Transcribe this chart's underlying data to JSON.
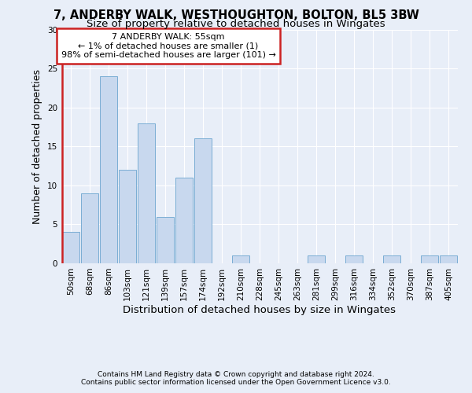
{
  "title": "7, ANDERBY WALK, WESTHOUGHTON, BOLTON, BL5 3BW",
  "subtitle": "Size of property relative to detached houses in Wingates",
  "xlabel_bottom": "Distribution of detached houses by size in Wingates",
  "ylabel": "Number of detached properties",
  "categories": [
    "50sqm",
    "68sqm",
    "86sqm",
    "103sqm",
    "121sqm",
    "139sqm",
    "157sqm",
    "174sqm",
    "192sqm",
    "210sqm",
    "228sqm",
    "245sqm",
    "263sqm",
    "281sqm",
    "299sqm",
    "316sqm",
    "334sqm",
    "352sqm",
    "370sqm",
    "387sqm",
    "405sqm"
  ],
  "values": [
    4,
    9,
    24,
    12,
    18,
    6,
    11,
    16,
    0,
    1,
    0,
    0,
    0,
    1,
    0,
    1,
    0,
    1,
    0,
    1,
    1
  ],
  "bar_color": "#c8d8ee",
  "bar_edge_color": "#7aadd4",
  "highlight_color": "#cc2222",
  "annotation_text": "7 ANDERBY WALK: 55sqm\n← 1% of detached houses are smaller (1)\n98% of semi-detached houses are larger (101) →",
  "annotation_box_color": "#ffffff",
  "annotation_box_edge": "#cc2222",
  "ylim": [
    0,
    30
  ],
  "yticks": [
    0,
    5,
    10,
    15,
    20,
    25,
    30
  ],
  "footnote1": "Contains HM Land Registry data © Crown copyright and database right 2024.",
  "footnote2": "Contains public sector information licensed under the Open Government Licence v3.0.",
  "background_color": "#e8eef8",
  "grid_color": "#ffffff",
  "title_fontsize": 10.5,
  "subtitle_fontsize": 9.5,
  "ylabel_fontsize": 9,
  "xlabel_fontsize": 9.5,
  "tick_fontsize": 7.5,
  "annot_fontsize": 8,
  "footnote_fontsize": 6.5
}
